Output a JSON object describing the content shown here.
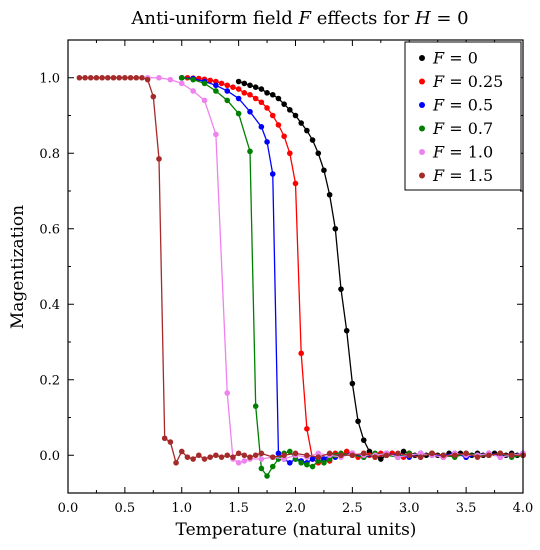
{
  "chart_data": {
    "type": "line",
    "title_prefix": "Anti-uniform field ",
    "title_var_f": "F",
    "title_mid": " effects for ",
    "title_var_h": "H",
    "title_suffix": " = 0",
    "xlabel": "Temperature (natural units)",
    "ylabel": "Magentization",
    "xlim": [
      0,
      4
    ],
    "ylim": [
      -0.1,
      1.1
    ],
    "x_ticks": [
      0,
      0.5,
      1,
      1.5,
      2,
      2.5,
      3,
      3.5,
      4
    ],
    "x_tick_labels": [
      "0.0",
      "0.5",
      "1.0",
      "1.5",
      "2.0",
      "2.5",
      "3.0",
      "3.5",
      "4.0"
    ],
    "y_ticks": [
      0,
      0.2,
      0.4,
      0.6,
      0.8,
      1.0
    ],
    "y_tick_labels": [
      "0.0",
      "0.2",
      "0.4",
      "0.6",
      "0.8",
      "1.0"
    ],
    "legend_position": "top-right",
    "legend_var": "F",
    "series": [
      {
        "name": "F = 0",
        "label_value": "0",
        "color": "#000000",
        "x": [
          1.5,
          1.55,
          1.6,
          1.65,
          1.7,
          1.75,
          1.8,
          1.85,
          1.9,
          1.95,
          2.0,
          2.05,
          2.1,
          2.15,
          2.2,
          2.25,
          2.3,
          2.35,
          2.4,
          2.45,
          2.5,
          2.55,
          2.6,
          2.65,
          2.7,
          2.75,
          2.8,
          2.85,
          2.9,
          2.95,
          3.0,
          3.05,
          3.1,
          3.15,
          3.2,
          3.25,
          3.3,
          3.35,
          3.4,
          3.45,
          3.5,
          3.55,
          3.6,
          3.65,
          3.7,
          3.75,
          3.8,
          3.85,
          3.9,
          3.95,
          4.0
        ],
        "y": [
          0.99,
          0.985,
          0.98,
          0.975,
          0.97,
          0.96,
          0.955,
          0.945,
          0.93,
          0.915,
          0.9,
          0.88,
          0.86,
          0.835,
          0.8,
          0.755,
          0.69,
          0.6,
          0.44,
          0.33,
          0.19,
          0.09,
          0.04,
          0.01,
          0.0,
          -0.01,
          0.0,
          0.005,
          -0.005,
          0.01,
          0.005,
          0.0,
          -0.005,
          0.0,
          0.005,
          0.0,
          -0.005,
          0.005,
          0.0,
          0.005,
          -0.005,
          0.0,
          0.005,
          0.0,
          0.0,
          0.005,
          -0.005,
          0.0,
          0.005,
          0.0,
          0.0
        ]
      },
      {
        "name": "F = 0.25",
        "label_value": "0.25",
        "color": "#ff0000",
        "x": [
          1.0,
          1.05,
          1.1,
          1.15,
          1.2,
          1.25,
          1.3,
          1.35,
          1.4,
          1.45,
          1.5,
          1.55,
          1.6,
          1.65,
          1.7,
          1.75,
          1.8,
          1.85,
          1.9,
          1.95,
          2.0,
          2.05,
          2.1,
          2.15,
          2.2,
          2.25,
          2.3,
          2.35,
          2.4,
          2.45,
          2.5,
          2.55,
          2.6,
          2.65,
          2.7,
          2.75,
          2.8,
          2.85,
          2.9,
          2.95,
          3.0,
          3.1,
          3.2,
          3.3,
          3.4,
          3.5,
          3.6,
          3.7,
          3.8,
          3.9,
          4.0
        ],
        "y": [
          1.0,
          1.0,
          0.999,
          0.998,
          0.996,
          0.993,
          0.99,
          0.985,
          0.98,
          0.975,
          0.97,
          0.96,
          0.955,
          0.945,
          0.935,
          0.92,
          0.9,
          0.875,
          0.845,
          0.8,
          0.72,
          0.27,
          0.07,
          -0.01,
          -0.02,
          -0.01,
          -0.015,
          0.005,
          0.0,
          0.01,
          0.005,
          -0.005,
          0.005,
          0.0,
          -0.005,
          0.005,
          0.0,
          0.005,
          0.0,
          -0.005,
          0.005,
          0.0,
          0.005,
          -0.005,
          0.0,
          0.005,
          0.0,
          0.0,
          0.005,
          0.0,
          0.0
        ]
      },
      {
        "name": "F = 0.5",
        "label_value": "0.5",
        "color": "#0000ff",
        "x": [
          1.0,
          1.1,
          1.2,
          1.3,
          1.4,
          1.5,
          1.6,
          1.7,
          1.75,
          1.8,
          1.85,
          1.9,
          1.95,
          2.0,
          2.05,
          2.1,
          2.15,
          2.2,
          2.25,
          2.3,
          2.35,
          2.4,
          2.5,
          2.6,
          2.7,
          2.8,
          2.9,
          3.0,
          3.1,
          3.2,
          3.3,
          3.4,
          3.5,
          3.6,
          3.7,
          3.8,
          3.9,
          4.0
        ],
        "y": [
          1.0,
          0.998,
          0.99,
          0.98,
          0.965,
          0.945,
          0.91,
          0.87,
          0.83,
          0.745,
          0.005,
          -0.01,
          -0.02,
          -0.01,
          -0.015,
          -0.02,
          -0.01,
          -0.005,
          -0.01,
          0.0,
          -0.005,
          0.0,
          0.005,
          -0.005,
          0.0,
          0.005,
          0.0,
          -0.005,
          0.005,
          0.0,
          0.0,
          0.005,
          -0.005,
          0.0,
          0.005,
          0.0,
          0.0,
          0.005
        ]
      },
      {
        "name": "F = 0.7",
        "label_value": "0.7",
        "color": "#008000",
        "x": [
          1.0,
          1.1,
          1.2,
          1.3,
          1.4,
          1.5,
          1.6,
          1.65,
          1.7,
          1.75,
          1.8,
          1.85,
          1.9,
          1.95,
          2.0,
          2.05,
          2.1,
          2.15,
          2.2,
          2.25,
          2.3,
          2.35,
          2.4,
          2.5,
          2.6,
          2.7,
          2.8,
          2.9,
          3.0,
          3.1,
          3.2,
          3.3,
          3.4,
          3.5,
          3.6,
          3.7,
          3.8,
          3.9,
          4.0
        ],
        "y": [
          1.0,
          0.995,
          0.985,
          0.965,
          0.94,
          0.905,
          0.805,
          0.13,
          -0.035,
          -0.055,
          -0.03,
          -0.01,
          0.005,
          0.01,
          -0.01,
          -0.02,
          -0.025,
          -0.03,
          -0.015,
          -0.02,
          -0.01,
          0.0,
          0.005,
          0.0,
          -0.005,
          0.005,
          0.0,
          -0.005,
          0.005,
          0.0,
          0.005,
          0.0,
          -0.005,
          0.005,
          0.0,
          0.0,
          0.005,
          -0.005,
          0.0
        ]
      },
      {
        "name": "F = 1.0",
        "label_value": "1.0",
        "color": "#ee82ee",
        "x": [
          0.7,
          0.8,
          0.9,
          1.0,
          1.1,
          1.2,
          1.3,
          1.4,
          1.45,
          1.5,
          1.55,
          1.6,
          1.7,
          1.8,
          1.9,
          2.0,
          2.1,
          2.2,
          2.3,
          2.4,
          2.5,
          2.6,
          2.7,
          2.8,
          2.9,
          3.0,
          3.1,
          3.2,
          3.3,
          3.4,
          3.5,
          3.6,
          3.7,
          3.8,
          3.9,
          4.0
        ],
        "y": [
          1.0,
          1.0,
          0.995,
          0.985,
          0.965,
          0.94,
          0.85,
          0.165,
          -0.01,
          -0.02,
          -0.015,
          -0.01,
          -0.01,
          -0.005,
          -0.01,
          0.0,
          -0.005,
          0.005,
          0.0,
          -0.005,
          0.005,
          0.0,
          0.0,
          0.005,
          -0.005,
          0.0,
          0.005,
          0.0,
          -0.005,
          0.005,
          0.0,
          0.0,
          0.005,
          -0.005,
          0.0,
          0.005
        ]
      },
      {
        "name": "F = 1.5",
        "label_value": "1.5",
        "color": "#a52a2a",
        "x": [
          0.1,
          0.15,
          0.2,
          0.25,
          0.3,
          0.35,
          0.4,
          0.45,
          0.5,
          0.55,
          0.6,
          0.65,
          0.7,
          0.75,
          0.8,
          0.85,
          0.9,
          0.95,
          1.0,
          1.05,
          1.1,
          1.15,
          1.2,
          1.25,
          1.3,
          1.35,
          1.4,
          1.45,
          1.5,
          1.55,
          1.6,
          1.65,
          1.7,
          1.8,
          1.9,
          2.0,
          2.1,
          2.2,
          2.3,
          2.4,
          2.5,
          2.6,
          2.7,
          2.8,
          2.9,
          3.0,
          3.1,
          3.2,
          3.3,
          3.4,
          3.5,
          3.6,
          3.7,
          3.8,
          3.9,
          4.0
        ],
        "y": [
          1.0,
          1.0,
          1.0,
          1.0,
          1.0,
          1.0,
          1.0,
          1.0,
          1.0,
          1.0,
          1.0,
          1.0,
          0.995,
          0.95,
          0.785,
          0.045,
          0.035,
          -0.02,
          0.01,
          -0.005,
          -0.01,
          0.0,
          -0.01,
          -0.005,
          0.0,
          -0.005,
          0.0,
          -0.005,
          0.005,
          0.0,
          -0.005,
          0.0,
          0.005,
          -0.005,
          0.0,
          0.005,
          0.0,
          -0.005,
          0.005,
          0.0,
          0.0,
          0.005,
          -0.005,
          0.0,
          0.005,
          0.0,
          -0.005,
          0.005,
          0.0,
          0.0,
          0.005,
          -0.005,
          0.0,
          0.005,
          0.0,
          0.0
        ]
      }
    ]
  }
}
